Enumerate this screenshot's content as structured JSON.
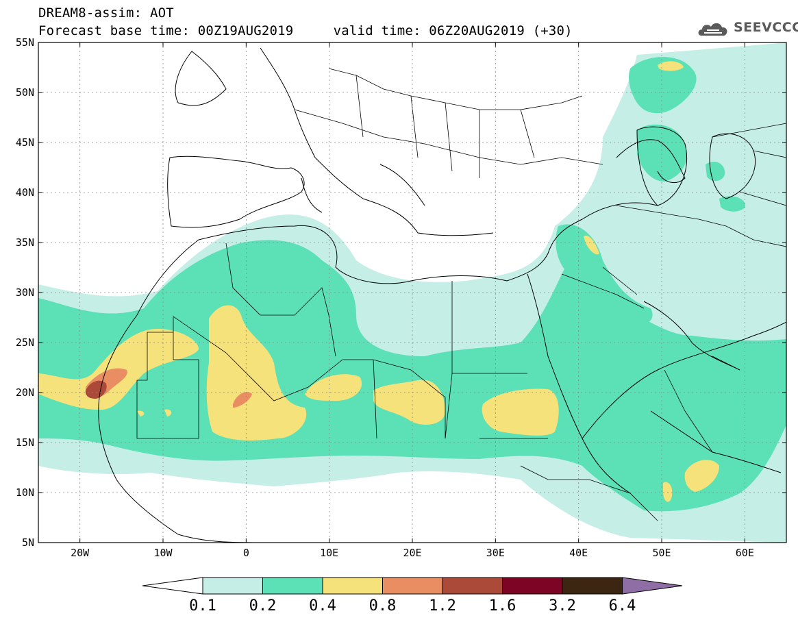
{
  "header": {
    "line1": "DREAM8-assim: AOT",
    "line2": "Forecast base time: 00Z19AUG2019     valid time: 06Z20AUG2019 (+30)"
  },
  "logo": {
    "text": "SEEVCCC",
    "icon": "cloud-icon"
  },
  "map": {
    "lon_range": [
      -25,
      65
    ],
    "lat_range": [
      5,
      55
    ],
    "lon_ticks": [
      {
        "value": -20,
        "label": "20W"
      },
      {
        "value": -10,
        "label": "10W"
      },
      {
        "value": 0,
        "label": "0"
      },
      {
        "value": 10,
        "label": "10E"
      },
      {
        "value": 20,
        "label": "20E"
      },
      {
        "value": 30,
        "label": "30E"
      },
      {
        "value": 40,
        "label": "40E"
      },
      {
        "value": 50,
        "label": "50E"
      },
      {
        "value": 60,
        "label": "60E"
      }
    ],
    "lat_ticks": [
      {
        "value": 5,
        "label": "5N"
      },
      {
        "value": 10,
        "label": "10N"
      },
      {
        "value": 15,
        "label": "15N"
      },
      {
        "value": 20,
        "label": "20N"
      },
      {
        "value": 25,
        "label": "25N"
      },
      {
        "value": 30,
        "label": "30N"
      },
      {
        "value": 35,
        "label": "35N"
      },
      {
        "value": 40,
        "label": "40N"
      },
      {
        "value": 45,
        "label": "45N"
      },
      {
        "value": 50,
        "label": "50N"
      },
      {
        "value": 55,
        "label": "55N"
      }
    ],
    "gridlines": "dotted"
  },
  "colorbar": {
    "labels": [
      "0.1",
      "0.2",
      "0.4",
      "0.8",
      "1.2",
      "1.6",
      "3.2",
      "6.4"
    ],
    "colors": [
      "#ffffff",
      "#c4eee6",
      "#5ce0b6",
      "#f6e27a",
      "#e88e62",
      "#ac4a3a",
      "#7d0424",
      "#3c2612",
      "#8e6ea4"
    ]
  }
}
